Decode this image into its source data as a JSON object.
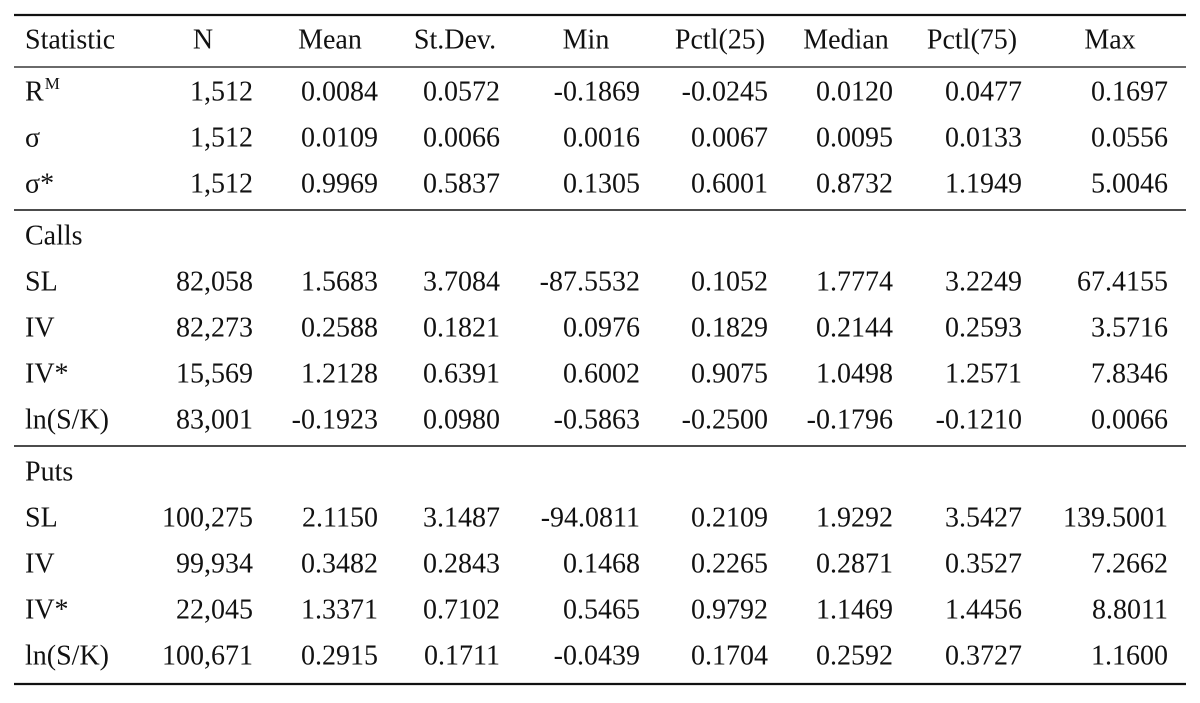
{
  "table": {
    "columns": [
      "Statistic",
      "N",
      "Mean",
      "St.Dev.",
      "Min",
      "Pctl(25)",
      "Median",
      "Pctl(75)",
      "Max"
    ],
    "top_rows": [
      {
        "label": "R",
        "label_sup": "M",
        "cells": [
          "1,512",
          "0.0084",
          "0.0572",
          "-0.1869",
          "-0.0245",
          "0.0120",
          "0.0477",
          "0.1697"
        ]
      },
      {
        "label": "σ",
        "cells": [
          "1,512",
          "0.0109",
          "0.0066",
          "0.0016",
          "0.0067",
          "0.0095",
          "0.0133",
          "0.0556"
        ]
      },
      {
        "label": "σ*",
        "cells": [
          "1,512",
          "0.9969",
          "0.5837",
          "0.1305",
          "0.6001",
          "0.8732",
          "1.1949",
          "5.0046"
        ]
      }
    ],
    "sections": [
      {
        "title": "Calls",
        "rows": [
          {
            "label": "SL",
            "cells": [
              "82,058",
              "1.5683",
              "3.7084",
              "-87.5532",
              "0.1052",
              "1.7774",
              "3.2249",
              "67.4155"
            ]
          },
          {
            "label": "IV",
            "cells": [
              "82,273",
              "0.2588",
              "0.1821",
              "0.0976",
              "0.1829",
              "0.2144",
              "0.2593",
              "3.5716"
            ]
          },
          {
            "label": "IV*",
            "cells": [
              "15,569",
              "1.2128",
              "0.6391",
              "0.6002",
              "0.9075",
              "1.0498",
              "1.2571",
              "7.8346"
            ]
          },
          {
            "label": "ln(S/K)",
            "cells": [
              "83,001",
              "-0.1923",
              "0.0980",
              "-0.5863",
              "-0.2500",
              "-0.1796",
              "-0.1210",
              "0.0066"
            ]
          }
        ]
      },
      {
        "title": "Puts",
        "rows": [
          {
            "label": "SL",
            "cells": [
              "100,275",
              "2.1150",
              "3.1487",
              "-94.0811",
              "0.2109",
              "1.9292",
              "3.5427",
              "139.5001"
            ]
          },
          {
            "label": "IV",
            "cells": [
              "99,934",
              "0.3482",
              "0.2843",
              "0.1468",
              "0.2265",
              "0.2871",
              "0.3527",
              "7.2662"
            ]
          },
          {
            "label": "IV*",
            "cells": [
              "22,045",
              "1.3371",
              "0.7102",
              "0.5465",
              "0.9792",
              "1.1469",
              "1.4456",
              "8.8011"
            ]
          },
          {
            "label": "ln(S/K)",
            "cells": [
              "100,671",
              "0.2915",
              "0.1711",
              "-0.0439",
              "0.1704",
              "0.2592",
              "0.3727",
              "1.1600"
            ]
          }
        ]
      }
    ]
  }
}
